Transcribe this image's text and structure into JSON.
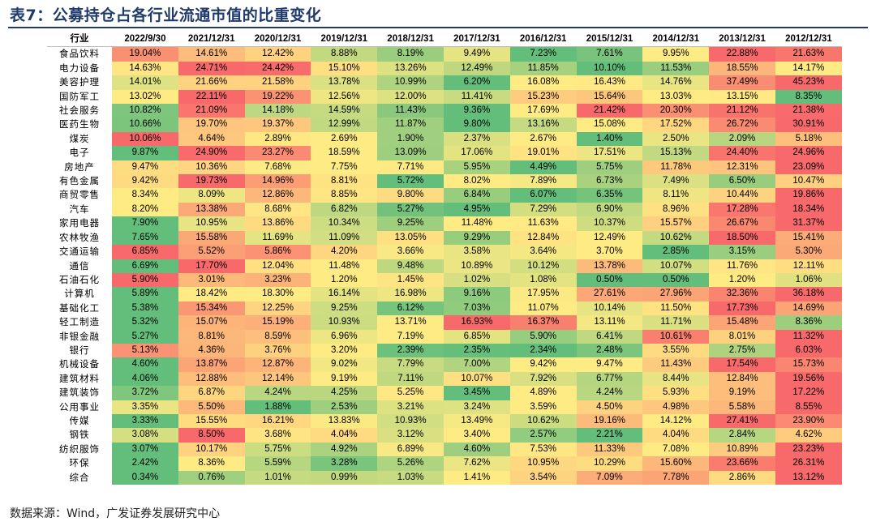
{
  "title": "表7：公募持仓占各行业流通市值的比重变化",
  "source": "数据来源：Wind，广发证券发展研究中心",
  "table": {
    "header_label": "行业",
    "columns": [
      "2022/9/30",
      "2021/12/31",
      "2020/12/31",
      "2019/12/31",
      "2018/12/31",
      "2017/12/31",
      "2016/12/31",
      "2015/12/31",
      "2014/12/31",
      "2013/12/31",
      "2012/12/31"
    ],
    "color_scale": {
      "low": "#63be7b",
      "mid": "#ffeb84",
      "high": "#f8696b"
    },
    "rows": [
      {
        "name": "食品饮料",
        "values": [
          "19.04%",
          "14.61%",
          "12.42%",
          "8.88%",
          "8.19%",
          "9.49%",
          "7.23%",
          "7.61%",
          "9.95%",
          "22.88%",
          "21.63%"
        ]
      },
      {
        "name": "电力设备",
        "values": [
          "14.63%",
          "24.71%",
          "24.42%",
          "15.10%",
          "13.26%",
          "12.49%",
          "11.85%",
          "10.10%",
          "11.53%",
          "18.55%",
          "14.17%"
        ]
      },
      {
        "name": "美容护理",
        "values": [
          "14.01%",
          "21.66%",
          "21.58%",
          "13.78%",
          "10.99%",
          "6.20%",
          "16.08%",
          "16.43%",
          "14.76%",
          "37.49%",
          "45.23%"
        ]
      },
      {
        "name": "国防军工",
        "values": [
          "13.02%",
          "22.11%",
          "19.22%",
          "12.56%",
          "12.00%",
          "11.41%",
          "15.23%",
          "15.64%",
          "13.03%",
          "13.15%",
          "8.35%"
        ]
      },
      {
        "name": "社会服务",
        "values": [
          "10.82%",
          "21.09%",
          "14.18%",
          "14.59%",
          "11.43%",
          "9.36%",
          "17.69%",
          "21.42%",
          "20.30%",
          "21.12%",
          "21.38%"
        ]
      },
      {
        "name": "医药生物",
        "values": [
          "10.66%",
          "19.70%",
          "19.37%",
          "12.99%",
          "11.87%",
          "9.80%",
          "13.16%",
          "15.08%",
          "17.52%",
          "26.72%",
          "30.91%"
        ]
      },
      {
        "name": "煤炭",
        "values": [
          "10.06%",
          "4.64%",
          "2.89%",
          "2.69%",
          "1.90%",
          "2.37%",
          "2.67%",
          "1.40%",
          "2.50%",
          "2.09%",
          "5.18%"
        ]
      },
      {
        "name": "电子",
        "values": [
          "9.87%",
          "24.90%",
          "23.27%",
          "18.59%",
          "13.09%",
          "17.06%",
          "19.01%",
          "17.51%",
          "15.13%",
          "24.40%",
          "24.96%"
        ]
      },
      {
        "name": "房地产",
        "values": [
          "9.47%",
          "10.36%",
          "7.68%",
          "7.75%",
          "7.71%",
          "5.95%",
          "4.49%",
          "5.75%",
          "11.78%",
          "12.31%",
          "23.09%"
        ]
      },
      {
        "name": "有色金属",
        "values": [
          "9.42%",
          "19.73%",
          "14.96%",
          "8.81%",
          "5.72%",
          "8.02%",
          "7.89%",
          "6.73%",
          "7.49%",
          "6.50%",
          "10.47%"
        ]
      },
      {
        "name": "商贸零售",
        "values": [
          "8.34%",
          "8.09%",
          "12.86%",
          "8.85%",
          "9.80%",
          "6.84%",
          "6.07%",
          "6.35%",
          "8.11%",
          "10.44%",
          "19.86%"
        ]
      },
      {
        "name": "汽车",
        "values": [
          "8.20%",
          "13.38%",
          "8.68%",
          "6.82%",
          "5.27%",
          "4.95%",
          "7.29%",
          "6.90%",
          "8.96%",
          "17.28%",
          "18.34%"
        ]
      },
      {
        "name": "家用电器",
        "values": [
          "7.90%",
          "10.95%",
          "13.86%",
          "10.34%",
          "9.25%",
          "11.48%",
          "11.63%",
          "10.37%",
          "15.57%",
          "26.67%",
          "31.37%"
        ]
      },
      {
        "name": "农林牧渔",
        "values": [
          "7.65%",
          "15.58%",
          "11.69%",
          "11.09%",
          "13.05%",
          "9.29%",
          "12.84%",
          "12.49%",
          "10.62%",
          "18.50%",
          "15.41%"
        ]
      },
      {
        "name": "交通运输",
        "values": [
          "6.85%",
          "5.52%",
          "5.86%",
          "4.20%",
          "3.66%",
          "3.58%",
          "3.64%",
          "3.70%",
          "2.85%",
          "3.15%",
          "5.30%"
        ]
      },
      {
        "name": "通信",
        "values": [
          "6.69%",
          "17.70%",
          "12.04%",
          "11.48%",
          "9.48%",
          "10.89%",
          "10.12%",
          "13.78%",
          "10.07%",
          "11.76%",
          "12.11%"
        ]
      },
      {
        "name": "石油石化",
        "values": [
          "5.90%",
          "3.01%",
          "3.23%",
          "1.20%",
          "1.45%",
          "1.02%",
          "1.08%",
          "0.50%",
          "0.50%",
          "1.20%",
          "1.06%"
        ]
      },
      {
        "name": "计算机",
        "values": [
          "5.89%",
          "18.42%",
          "18.30%",
          "16.14%",
          "16.98%",
          "9.16%",
          "17.95%",
          "27.61%",
          "27.96%",
          "32.36%",
          "36.18%"
        ]
      },
      {
        "name": "基础化工",
        "values": [
          "5.38%",
          "15.34%",
          "12.25%",
          "9.25%",
          "6.12%",
          "7.03%",
          "11.07%",
          "10.14%",
          "11.50%",
          "17.73%",
          "14.69%"
        ]
      },
      {
        "name": "轻工制造",
        "values": [
          "5.32%",
          "15.07%",
          "15.19%",
          "10.93%",
          "13.71%",
          "16.93%",
          "16.37%",
          "13.11%",
          "11.71%",
          "15.48%",
          "8.36%"
        ]
      },
      {
        "name": "非银金融",
        "values": [
          "5.27%",
          "8.81%",
          "8.59%",
          "6.96%",
          "7.19%",
          "6.85%",
          "5.90%",
          "6.41%",
          "10.61%",
          "8.01%",
          "11.32%"
        ]
      },
      {
        "name": "银行",
        "values": [
          "5.13%",
          "4.36%",
          "3.76%",
          "3.20%",
          "2.39%",
          "2.35%",
          "2.34%",
          "2.48%",
          "3.55%",
          "2.75%",
          "6.03%"
        ]
      },
      {
        "name": "机械设备",
        "values": [
          "4.60%",
          "13.87%",
          "12.87%",
          "9.02%",
          "7.79%",
          "7.00%",
          "9.42%",
          "9.47%",
          "11.43%",
          "17.54%",
          "15.73%"
        ]
      },
      {
        "name": "建筑材料",
        "values": [
          "4.06%",
          "12.88%",
          "12.14%",
          "9.19%",
          "7.11%",
          "10.07%",
          "7.92%",
          "6.77%",
          "8.44%",
          "12.84%",
          "19.56%"
        ]
      },
      {
        "name": "建筑装饰",
        "values": [
          "3.72%",
          "6.87%",
          "4.24%",
          "4.25%",
          "5.25%",
          "3.45%",
          "4.89%",
          "4.24%",
          "5.93%",
          "9.19%",
          "17.22%"
        ]
      },
      {
        "name": "公用事业",
        "values": [
          "3.35%",
          "5.50%",
          "1.88%",
          "2.53%",
          "3.21%",
          "3.24%",
          "3.59%",
          "4.50%",
          "4.98%",
          "5.58%",
          "8.55%"
        ]
      },
      {
        "name": "传媒",
        "values": [
          "3.33%",
          "15.55%",
          "16.21%",
          "13.83%",
          "10.93%",
          "13.49%",
          "10.62%",
          "19.16%",
          "14.12%",
          "27.41%",
          "23.90%"
        ]
      },
      {
        "name": "钢铁",
        "values": [
          "3.08%",
          "8.50%",
          "3.68%",
          "4.04%",
          "3.12%",
          "3.40%",
          "2.57%",
          "2.21%",
          "4.04%",
          "2.84%",
          "4.62%"
        ]
      },
      {
        "name": "纺织服饰",
        "values": [
          "3.07%",
          "10.17%",
          "5.75%",
          "4.92%",
          "6.89%",
          "4.60%",
          "7.53%",
          "11.33%",
          "7.08%",
          "10.89%",
          "23.23%"
        ]
      },
      {
        "name": "环保",
        "values": [
          "2.42%",
          "8.36%",
          "5.59%",
          "3.28%",
          "5.26%",
          "7.62%",
          "10.95%",
          "10.29%",
          "15.60%",
          "23.66%",
          "26.31%"
        ]
      },
      {
        "name": "综合",
        "values": [
          "0.34%",
          "0.76%",
          "1.01%",
          "0.99%",
          "1.03%",
          "1.41%",
          "3.54%",
          "7.09%",
          "7.78%",
          "2.86%",
          "13.12%"
        ]
      }
    ]
  }
}
